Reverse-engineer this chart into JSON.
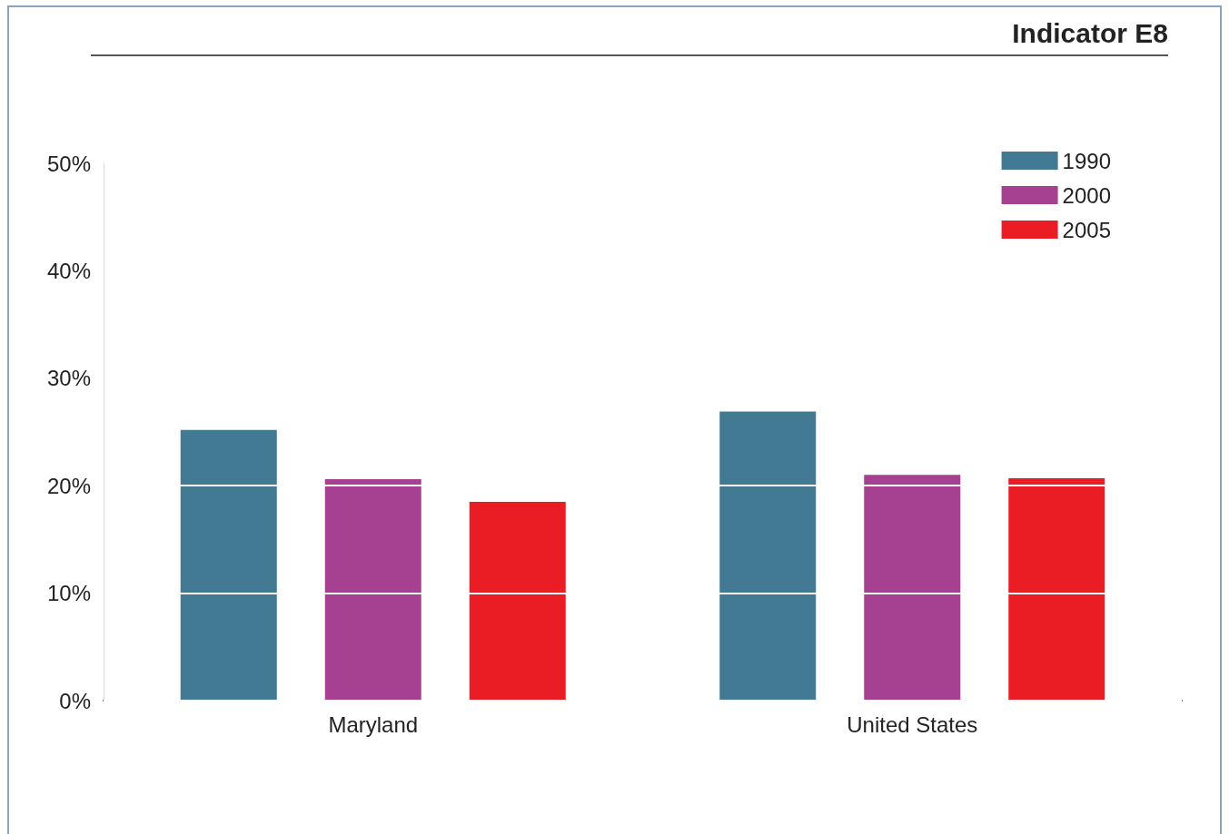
{
  "chart_data": {
    "type": "bar",
    "title": "Indicator E8",
    "categories": [
      "Maryland",
      "United States"
    ],
    "series": [
      {
        "name": "1990",
        "color": "#427a94",
        "values": [
          25.2,
          26.9
        ]
      },
      {
        "name": "2000",
        "color": "#a64191",
        "values": [
          20.6,
          21.0
        ]
      },
      {
        "name": "2005",
        "color": "#ea1c24",
        "values": [
          18.5,
          20.7
        ]
      }
    ],
    "ylim": [
      0,
      50
    ],
    "yticks": [
      {
        "value": 0,
        "label": "0%"
      },
      {
        "value": 10,
        "label": "10%"
      },
      {
        "value": 20,
        "label": "20%"
      },
      {
        "value": 30,
        "label": "30%"
      },
      {
        "value": 40,
        "label": "40%"
      },
      {
        "value": 50,
        "label": "50%"
      }
    ],
    "grid": "y",
    "legend": "top right"
  }
}
